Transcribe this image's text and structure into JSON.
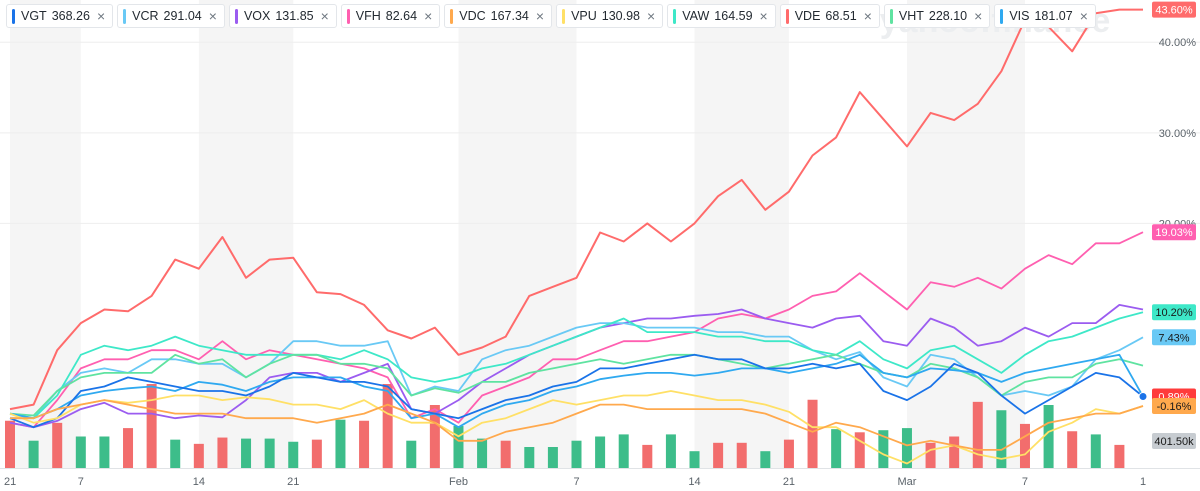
{
  "chips": [
    {
      "ticker": "VGT",
      "price": "368.26",
      "color": "#1a73e8"
    },
    {
      "ticker": "VCR",
      "price": "291.04",
      "color": "#69c9f5"
    },
    {
      "ticker": "VOX",
      "price": "131.85",
      "color": "#9b5cf0"
    },
    {
      "ticker": "VFH",
      "price": "82.64",
      "color": "#ff5fb0"
    },
    {
      "ticker": "VDC",
      "price": "167.34",
      "color": "#ffa94d"
    },
    {
      "ticker": "VPU",
      "price": "130.98",
      "color": "#ffe066"
    },
    {
      "ticker": "VAW",
      "price": "164.59",
      "color": "#3ee8c8"
    },
    {
      "ticker": "VDE",
      "price": "68.51",
      "color": "#ff6b6b"
    },
    {
      "ticker": "VHT",
      "price": "228.10",
      "color": "#5fe3a1"
    },
    {
      "ticker": "VIS",
      "price": "181.07",
      "color": "#2fa9f0"
    }
  ],
  "close_symbol": "×",
  "watermark": "yahoo!finance",
  "chart_data": {
    "type": "line",
    "x_tick_labels": [
      {
        "i": 0,
        "label": "21"
      },
      {
        "i": 3,
        "label": "7"
      },
      {
        "i": 8,
        "label": "14"
      },
      {
        "i": 12,
        "label": "21"
      },
      {
        "i": 19,
        "label": "Feb"
      },
      {
        "i": 24,
        "label": "7"
      },
      {
        "i": 29,
        "label": "14"
      },
      {
        "i": 33,
        "label": "21"
      },
      {
        "i": 38,
        "label": "Mar"
      },
      {
        "i": 43,
        "label": "7"
      },
      {
        "i": 48,
        "label": "1"
      }
    ],
    "y_range": [
      -7,
      44
    ],
    "y_ticks": [
      {
        "value": 40,
        "label": "40.00%"
      },
      {
        "value": 30,
        "label": "30.00%"
      },
      {
        "value": 20,
        "label": "20.00%"
      }
    ],
    "end_labels": [
      {
        "value": 43.6,
        "label": "43.60%",
        "color": "#ff6b6b"
      },
      {
        "value": 19.03,
        "label": "19.03%",
        "color": "#ff5fb0"
      },
      {
        "value": 10.2,
        "label": "10.20%",
        "color": "#3ee8c8"
      },
      {
        "value": 7.43,
        "label": "7.43%",
        "color": "#69c9f5"
      },
      {
        "value": 0.89,
        "label": "0.89%",
        "color": "#ff3b3b"
      },
      {
        "value": -0.16,
        "label": "-0.16%",
        "color": "#ffa94d"
      }
    ],
    "volume_label": "401.50k",
    "volume_label_color": "#c7ccd1",
    "bands_color": "#f5f5f5",
    "volume_up_color": "#3dbd8a",
    "volume_down_color": "#f26d6d",
    "series": [
      {
        "name": "VDE",
        "color": "#ff6b6b",
        "width": 2,
        "values": [
          -0.5,
          0,
          6,
          9,
          10.5,
          10.3,
          12,
          16,
          15,
          18.5,
          14,
          16,
          16.2,
          12.4,
          12.2,
          11,
          8.2,
          7.3,
          8.5,
          5.5,
          6.3,
          7.5,
          12,
          13,
          14,
          19,
          18,
          20,
          18,
          20,
          23,
          24.8,
          21.5,
          23.5,
          27.5,
          29.5,
          34.5,
          31.5,
          28.5,
          32.2,
          31.4,
          33.2,
          36.8,
          42.5,
          41.7,
          39,
          43.2,
          43.6,
          43.6
        ]
      },
      {
        "name": "VFH",
        "color": "#ff5fb0",
        "width": 1.8,
        "values": [
          -2,
          -2.5,
          0.5,
          4,
          5,
          5,
          6,
          6,
          5,
          7,
          5,
          6,
          5.5,
          5,
          4.5,
          4,
          3,
          -1.5,
          -0.5,
          -2,
          1,
          2,
          3,
          5,
          5,
          6,
          7,
          7,
          7.5,
          8,
          9.5,
          10,
          9.5,
          10.5,
          12,
          12.5,
          14.5,
          12.5,
          10.5,
          13.5,
          13,
          14,
          12.8,
          15,
          16.5,
          15.5,
          17.8,
          17.8,
          19.03
        ]
      },
      {
        "name": "VOX",
        "color": "#9b5cf0",
        "width": 1.8,
        "values": [
          -2,
          -2.5,
          -1.8,
          -0.5,
          0.2,
          -1,
          -1,
          -1.5,
          -1.2,
          -1.4,
          0.5,
          3,
          3.5,
          3.5,
          2.5,
          3.5,
          4.5,
          -0.5,
          -1,
          0.5,
          2.5,
          4,
          5.5,
          6.5,
          7.5,
          8.5,
          9,
          9.5,
          9.5,
          9.8,
          10,
          10.5,
          9.5,
          9,
          8.5,
          9.5,
          9.8,
          7,
          6.5,
          9.5,
          8.5,
          6.5,
          7,
          8.5,
          7.5,
          9,
          9,
          11,
          10.5
        ]
      },
      {
        "name": "VCR",
        "color": "#69c9f5",
        "width": 1.8,
        "values": [
          -1.5,
          -1.5,
          1.5,
          3.5,
          4,
          3.5,
          5,
          5,
          4.5,
          4.5,
          3,
          4.5,
          7,
          7,
          6.5,
          6.5,
          7,
          1,
          2,
          1.5,
          5,
          6,
          6.5,
          7.5,
          8.5,
          9,
          9,
          8.5,
          8.5,
          8.5,
          8,
          8,
          7.5,
          7.5,
          6,
          5,
          5.8,
          3,
          2,
          5.5,
          5,
          3,
          1,
          1.5,
          1,
          2,
          5,
          6,
          7.43
        ]
      },
      {
        "name": "VAW",
        "color": "#3ee8c8",
        "width": 1.8,
        "values": [
          -1,
          -1.5,
          1,
          5.5,
          6.5,
          6,
          6.5,
          7.5,
          6.5,
          6,
          5.5,
          5.5,
          5.5,
          5.5,
          5,
          6,
          5,
          3,
          2.5,
          3,
          4,
          4.5,
          5.5,
          6.5,
          7.5,
          8.5,
          9.5,
          8,
          8,
          8,
          7.5,
          7.5,
          7,
          7,
          6,
          5.5,
          7,
          5,
          4,
          6,
          6.5,
          5,
          3.5,
          5.5,
          7,
          7.5,
          8.5,
          9.5,
          10.2
        ]
      },
      {
        "name": "VHT",
        "color": "#5fe3a1",
        "width": 1.8,
        "values": [
          -1,
          -1.2,
          1.5,
          3,
          3.5,
          3.5,
          3.5,
          5.5,
          4.5,
          5,
          3,
          4.5,
          5.5,
          5.5,
          4.5,
          4.5,
          4,
          1,
          1.8,
          1.3,
          2.5,
          2.5,
          3.5,
          4,
          4.5,
          5,
          4.5,
          5,
          5.5,
          5.5,
          5,
          4.5,
          4,
          4.5,
          5,
          5.5,
          4.5,
          3.5,
          3,
          4.5,
          4,
          3,
          1,
          2.5,
          3,
          3,
          4.5,
          5,
          4.3
        ]
      },
      {
        "name": "VIS",
        "color": "#2fa9f0",
        "width": 1.8,
        "values": [
          -1,
          -1.5,
          -0.5,
          1,
          1.5,
          1.8,
          2,
          1.5,
          2.5,
          2.2,
          1.5,
          2.5,
          3,
          3,
          3,
          2,
          1.5,
          -1.5,
          -1,
          -2.5,
          -1,
          0,
          0.5,
          1.5,
          2,
          2.8,
          3.2,
          3.5,
          3.5,
          3.2,
          3.5,
          4,
          4,
          3.5,
          4,
          4.5,
          5.5,
          3.5,
          3,
          4,
          3.8,
          3.5,
          2.5,
          3.5,
          4,
          4.5,
          5,
          5.5,
          0.89
        ]
      },
      {
        "name": "VGT",
        "color": "#1a73e8",
        "width": 1.8,
        "values": [
          -1.5,
          -2.5,
          -1.5,
          1.5,
          2,
          3,
          2.5,
          2,
          1.5,
          1.5,
          1,
          2,
          3.5,
          3,
          2.5,
          2.5,
          2,
          -0.5,
          -1,
          -1.5,
          -0.5,
          0.5,
          1,
          2,
          2.5,
          4,
          4,
          4.5,
          5,
          5.5,
          5,
          5,
          4,
          4,
          4.5,
          4,
          4.5,
          1.5,
          0.5,
          2,
          4.5,
          3.5,
          1,
          -1,
          0.5,
          2,
          3.5,
          3,
          0.89
        ]
      },
      {
        "name": "VPU",
        "color": "#ffe066",
        "width": 1.8,
        "values": [
          -1,
          -2,
          -1.5,
          0,
          0.5,
          0.2,
          0.5,
          1,
          1,
          0.5,
          0.8,
          0.6,
          0,
          0,
          -0.5,
          0.5,
          -1,
          -2,
          -2,
          -3.5,
          -2,
          -1.5,
          -0.5,
          0.5,
          0,
          0.5,
          1,
          1,
          1.5,
          1,
          0.5,
          0.5,
          0,
          -0.8,
          -2.5,
          -2.5,
          -4,
          -5.5,
          -6.5,
          -5,
          -4.5,
          -5.5,
          -6,
          -5.5,
          -3,
          -2,
          -0.5,
          -1,
          -0.16
        ]
      },
      {
        "name": "VDC",
        "color": "#ffa94d",
        "width": 1.8,
        "values": [
          -1.5,
          -1.5,
          -0.5,
          0,
          0.5,
          0,
          -0.5,
          -1,
          -1,
          -1,
          -1.5,
          -1.5,
          -1.5,
          -2,
          -1.5,
          -1,
          0,
          -1,
          -2,
          -4,
          -4,
          -3,
          -2.5,
          -2,
          -1,
          0,
          0,
          -0.5,
          -0.5,
          -0.5,
          -0.5,
          -0.5,
          -1,
          -2,
          -3,
          -2,
          -2.5,
          -3.5,
          -4.5,
          -4,
          -4.5,
          -5,
          -5,
          -3.5,
          -2,
          -1.5,
          -1,
          -1,
          -0.16
        ]
      }
    ],
    "volume": [
      {
        "v": 0.45,
        "up": false
      },
      {
        "v": 0.26,
        "up": true
      },
      {
        "v": 0.43,
        "up": false
      },
      {
        "v": 0.3,
        "up": true
      },
      {
        "v": 0.3,
        "up": true
      },
      {
        "v": 0.38,
        "up": false
      },
      {
        "v": 0.8,
        "up": false
      },
      {
        "v": 0.27,
        "up": true
      },
      {
        "v": 0.23,
        "up": false
      },
      {
        "v": 0.29,
        "up": false
      },
      {
        "v": 0.28,
        "up": true
      },
      {
        "v": 0.28,
        "up": true
      },
      {
        "v": 0.25,
        "up": true
      },
      {
        "v": 0.27,
        "up": false
      },
      {
        "v": 0.46,
        "up": true
      },
      {
        "v": 0.45,
        "up": false
      },
      {
        "v": 0.8,
        "up": false
      },
      {
        "v": 0.26,
        "up": true
      },
      {
        "v": 0.6,
        "up": false
      },
      {
        "v": 0.4,
        "up": true
      },
      {
        "v": 0.28,
        "up": true
      },
      {
        "v": 0.26,
        "up": false
      },
      {
        "v": 0.2,
        "up": true
      },
      {
        "v": 0.2,
        "up": true
      },
      {
        "v": 0.26,
        "up": true
      },
      {
        "v": 0.3,
        "up": true
      },
      {
        "v": 0.32,
        "up": true
      },
      {
        "v": 0.22,
        "up": false
      },
      {
        "v": 0.32,
        "up": true
      },
      {
        "v": 0.16,
        "up": true
      },
      {
        "v": 0.24,
        "up": false
      },
      {
        "v": 0.24,
        "up": false
      },
      {
        "v": 0.16,
        "up": true
      },
      {
        "v": 0.27,
        "up": false
      },
      {
        "v": 0.65,
        "up": false
      },
      {
        "v": 0.37,
        "up": true
      },
      {
        "v": 0.34,
        "up": false
      },
      {
        "v": 0.36,
        "up": true
      },
      {
        "v": 0.38,
        "up": true
      },
      {
        "v": 0.24,
        "up": false
      },
      {
        "v": 0.3,
        "up": false
      },
      {
        "v": 0.63,
        "up": false
      },
      {
        "v": 0.55,
        "up": true
      },
      {
        "v": 0.42,
        "up": false
      },
      {
        "v": 0.6,
        "up": true
      },
      {
        "v": 0.35,
        "up": false
      },
      {
        "v": 0.32,
        "up": true
      },
      {
        "v": 0.22,
        "up": false
      }
    ]
  }
}
